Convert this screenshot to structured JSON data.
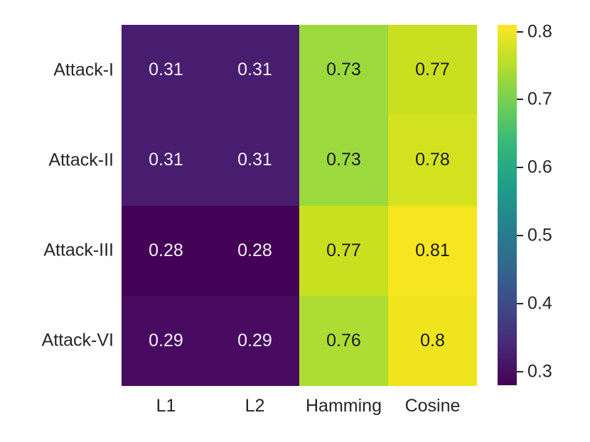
{
  "chart_data": {
    "type": "heatmap",
    "title": "",
    "xlabel": "",
    "ylabel": "",
    "rows": [
      "Attack-I",
      "Attack-II",
      "Attack-III",
      "Attack-VI"
    ],
    "columns": [
      "L1",
      "L2",
      "Hamming",
      "Cosine"
    ],
    "values": [
      [
        0.31,
        0.31,
        0.73,
        0.77
      ],
      [
        0.31,
        0.31,
        0.73,
        0.78
      ],
      [
        0.28,
        0.28,
        0.77,
        0.81
      ],
      [
        0.29,
        0.29,
        0.76,
        0.8
      ]
    ],
    "cell_labels": [
      [
        "0.31",
        "0.31",
        "0.73",
        "0.77"
      ],
      [
        "0.31",
        "0.31",
        "0.73",
        "0.78"
      ],
      [
        "0.28",
        "0.28",
        "0.77",
        "0.81"
      ],
      [
        "0.29",
        "0.29",
        "0.76",
        "0.8"
      ]
    ],
    "colormap": "viridis",
    "vmin": 0.28,
    "vmax": 0.81,
    "legend_position": "right-colorbar",
    "grid": false,
    "colorbar_ticks": [
      0.8,
      0.7,
      0.6,
      0.5,
      0.4,
      0.3
    ],
    "colorbar_tick_labels": [
      "0.8",
      "0.7",
      "0.6",
      "0.5",
      "0.4",
      "0.3"
    ],
    "cell_colors": {
      "0.28": "#440256",
      "0.29": "#470a60",
      "0.31": "#481d70",
      "0.73": "#9bd93c",
      "0.76": "#addd33",
      "0.77": "#c8e020",
      "0.78": "#d2e21e",
      "0.8": "#f0e51d",
      "0.81": "#f6e61f"
    },
    "annotation_text_on_dark": "#f4f0f7",
    "annotation_text_on_light": "#1a1a1a",
    "axis_text_color": "#262626",
    "colorbar_gradient_bottom_to_top": [
      "#440154",
      "#482878",
      "#3e4a89",
      "#31688e",
      "#26828e",
      "#1f9e89",
      "#35b779",
      "#6ece58",
      "#b5de2b",
      "#fde725"
    ]
  }
}
